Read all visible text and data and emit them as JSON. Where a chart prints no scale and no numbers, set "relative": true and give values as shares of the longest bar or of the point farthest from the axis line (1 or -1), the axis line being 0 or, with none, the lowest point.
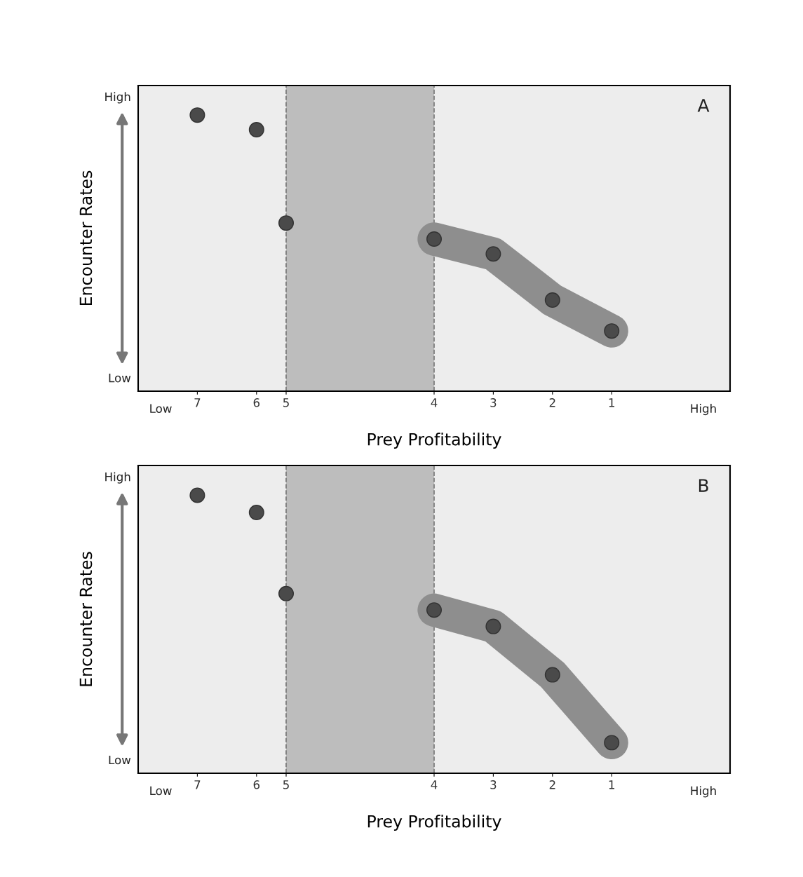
{
  "chart_data": [
    {
      "type": "scatter",
      "relative": true,
      "xlabel": "Prey Profitability",
      "ylabel": "Encounter Rates",
      "annotations": [
        "A",
        "High",
        "Low",
        "Low",
        "High"
      ],
      "categories": [
        "7",
        null,
        "6",
        "5",
        null,
        null,
        null,
        null,
        "4",
        null,
        "3",
        null,
        "2",
        null,
        "1"
      ],
      "bands": [
        {
          "axis": "x",
          "from": "5",
          "to": "4",
          "color": "#bdbdbd"
        }
      ],
      "ref_lines": [
        {
          "axis": "x",
          "value": "5",
          "color": "#777777",
          "line_style": "dashed"
        },
        {
          "axis": "x",
          "value": "4",
          "color": "#777777",
          "line_style": "dashed"
        }
      ],
      "series": [
        {
          "type": "line",
          "marker": "none",
          "color": "#8e8e8e",
          "values": [
            null,
            null,
            null,
            null,
            null,
            null,
            null,
            null,
            0.551,
            null,
            0.497,
            null,
            0.33,
            null,
            0.218
          ]
        },
        {
          "marker": "circle",
          "color": "#4a4a4a",
          "values": [
            1,
            null,
            0.947,
            0.609,
            null,
            null,
            null,
            null,
            0.551,
            null,
            0.497,
            null,
            0.33,
            null,
            0.218
          ]
        }
      ]
    },
    {
      "type": "scatter",
      "relative": true,
      "xlabel": "Prey Profitability",
      "ylabel": "Encounter Rates",
      "annotations": [
        "B",
        "High",
        "Low",
        "Low",
        "High"
      ],
      "categories": [
        "7",
        null,
        "6",
        "5",
        null,
        null,
        null,
        null,
        "4",
        null,
        "3",
        null,
        "2",
        null,
        "1"
      ],
      "bands": [
        {
          "axis": "x",
          "from": "5",
          "to": "4",
          "color": "#bdbdbd"
        }
      ],
      "ref_lines": [
        {
          "axis": "x",
          "value": "5",
          "color": "#777777",
          "line_style": "dashed"
        },
        {
          "axis": "x",
          "value": "4",
          "color": "#777777",
          "line_style": "dashed"
        }
      ],
      "series": [
        {
          "type": "line",
          "marker": "none",
          "color": "#8e8e8e",
          "values": [
            null,
            null,
            null,
            null,
            null,
            null,
            null,
            null,
            0.587,
            null,
            0.528,
            null,
            0.354,
            null,
            0.11
          ]
        },
        {
          "marker": "circle",
          "color": "#4a4a4a",
          "values": [
            1,
            null,
            0.938,
            0.646,
            null,
            null,
            null,
            null,
            0.587,
            null,
            0.528,
            null,
            0.354,
            null,
            0.11
          ]
        }
      ]
    }
  ]
}
